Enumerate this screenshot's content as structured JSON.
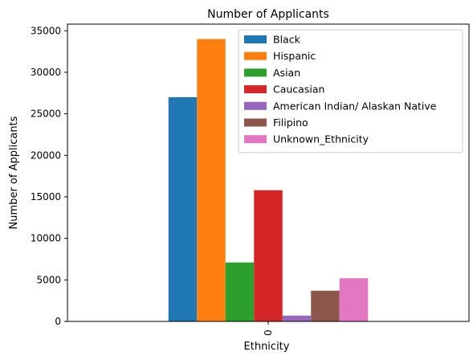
{
  "chart_data": {
    "type": "bar",
    "title": "Number of Applicants",
    "xlabel": "Ethnicity",
    "ylabel": "Number of Applicants",
    "categories": [
      "0"
    ],
    "ylim": [
      0,
      35800
    ],
    "yticks": [
      0,
      5000,
      10000,
      15000,
      20000,
      25000,
      30000,
      35000
    ],
    "grid": false,
    "legend_position": "top-right",
    "series": [
      {
        "name": "Black",
        "values": [
          27000
        ],
        "color": "#1f77b4"
      },
      {
        "name": "Hispanic",
        "values": [
          34000
        ],
        "color": "#ff7f0e"
      },
      {
        "name": "Asian",
        "values": [
          7100
        ],
        "color": "#2ca02c"
      },
      {
        "name": "Caucasian",
        "values": [
          15800
        ],
        "color": "#d62728"
      },
      {
        "name": "American Indian/ Alaskan Native",
        "values": [
          700
        ],
        "color": "#9467bd"
      },
      {
        "name": "Filipino",
        "values": [
          3700
        ],
        "color": "#8c564b"
      },
      {
        "name": "Unknown_Ethnicity",
        "values": [
          5200
        ],
        "color": "#e377c2"
      }
    ]
  }
}
